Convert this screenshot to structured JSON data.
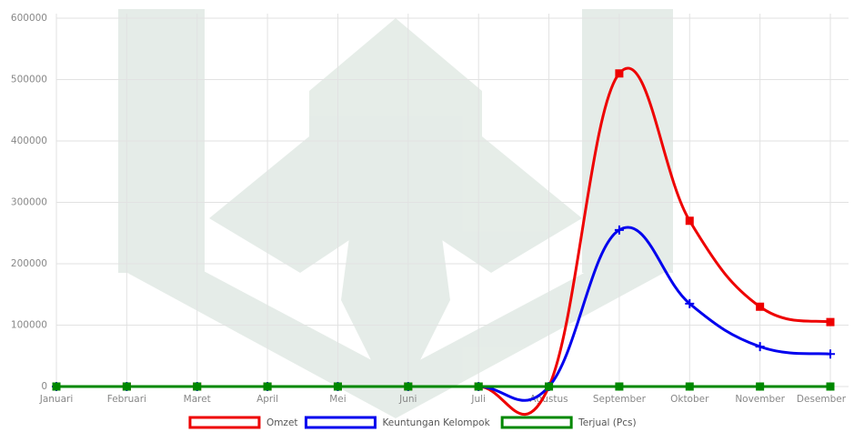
{
  "chart_data": {
    "type": "line",
    "categories": [
      "Januari",
      "Februari",
      "Maret",
      "April",
      "Mei",
      "Juni",
      "Juli",
      "Agustus",
      "September",
      "Oktober",
      "November",
      "Desember"
    ],
    "series": [
      {
        "name": "Omzet",
        "color": "#ee0000",
        "marker": "square",
        "values": [
          0,
          0,
          0,
          0,
          0,
          0,
          0,
          0,
          510000,
          270000,
          130000,
          105000
        ]
      },
      {
        "name": "Keuntungan Kelompok",
        "color": "#0000ee",
        "marker": "cross",
        "values": [
          0,
          0,
          0,
          0,
          0,
          0,
          0,
          0,
          255000,
          135000,
          65000,
          53000
        ]
      },
      {
        "name": "Terjual (Pcs)",
        "color": "#008800",
        "marker": "square",
        "values": [
          0,
          0,
          0,
          0,
          0,
          0,
          0,
          0,
          0,
          0,
          0,
          0
        ]
      }
    ],
    "ylim": [
      0,
      600000
    ],
    "yticks": [
      0,
      100000,
      200000,
      300000,
      400000,
      500000,
      600000
    ],
    "grid": true,
    "legend": "bottom"
  }
}
